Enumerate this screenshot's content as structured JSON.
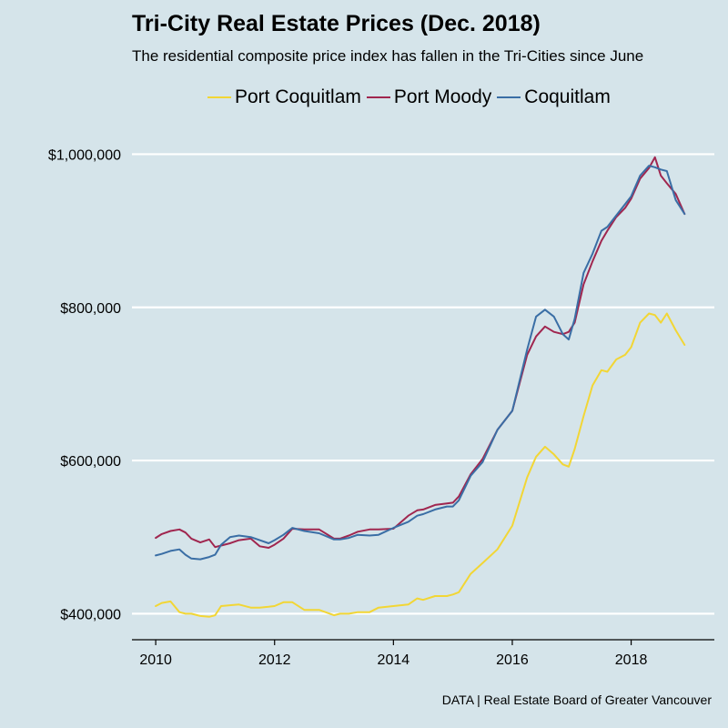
{
  "chart_data": {
    "type": "line",
    "title": "Tri-City Real Estate Prices (Dec. 2018)",
    "subtitle": "The residential composite price index has fallen in the Tri-Cities since June",
    "caption": "DATA | Real Estate Board of Greater Vancouver",
    "xlabel": "",
    "ylabel": "",
    "xlim": [
      2009.6,
      2019.4
    ],
    "ylim": [
      366000,
      1035000
    ],
    "x_ticks": [
      2010,
      2012,
      2014,
      2016,
      2018
    ],
    "x_tick_labels": [
      "2010",
      "2012",
      "2014",
      "2016",
      "2018"
    ],
    "y_ticks": [
      400000,
      600000,
      800000,
      1000000
    ],
    "y_tick_labels": [
      "$400,000",
      "$600,000",
      "$800,000",
      "$1,000,000"
    ],
    "grid": "horizontal",
    "legend_position": "top",
    "series": [
      {
        "name": "Port Coquitlam",
        "color": "#f2d635",
        "x": [
          2010.0,
          2010.1,
          2010.25,
          2010.4,
          2010.5,
          2010.6,
          2010.75,
          2010.9,
          2011.0,
          2011.1,
          2011.25,
          2011.4,
          2011.6,
          2011.75,
          2011.9,
          2012.0,
          2012.15,
          2012.3,
          2012.5,
          2012.75,
          2013.0,
          2013.1,
          2013.25,
          2013.4,
          2013.6,
          2013.75,
          2014.0,
          2014.25,
          2014.4,
          2014.5,
          2014.7,
          2014.9,
          2015.0,
          2015.1,
          2015.3,
          2015.5,
          2015.75,
          2016.0,
          2016.25,
          2016.4,
          2016.55,
          2016.7,
          2016.85,
          2016.95,
          2017.05,
          2017.2,
          2017.35,
          2017.5,
          2017.6,
          2017.75,
          2017.9,
          2018.0,
          2018.15,
          2018.3,
          2018.4,
          2018.5,
          2018.6,
          2018.75,
          2018.9
        ],
        "values": [
          410000,
          414000,
          416000,
          402000,
          400000,
          400000,
          397000,
          396000,
          398000,
          410000,
          411000,
          412000,
          408000,
          408000,
          409000,
          410000,
          415000,
          415000,
          405000,
          405000,
          398000,
          400000,
          400000,
          402000,
          402000,
          408000,
          410000,
          412000,
          420000,
          418000,
          423000,
          423000,
          425000,
          428000,
          452000,
          466000,
          484000,
          515000,
          578000,
          605000,
          618000,
          608000,
          595000,
          592000,
          615000,
          658000,
          698000,
          718000,
          716000,
          732000,
          738000,
          748000,
          780000,
          792000,
          790000,
          780000,
          792000,
          770000,
          751000
        ]
      },
      {
        "name": "Port Moody",
        "color": "#a0264f",
        "x": [
          2010.0,
          2010.1,
          2010.25,
          2010.4,
          2010.5,
          2010.6,
          2010.75,
          2010.9,
          2011.0,
          2011.1,
          2011.25,
          2011.4,
          2011.6,
          2011.75,
          2011.9,
          2012.0,
          2012.15,
          2012.3,
          2012.5,
          2012.75,
          2013.0,
          2013.1,
          2013.25,
          2013.4,
          2013.6,
          2013.75,
          2014.0,
          2014.25,
          2014.4,
          2014.5,
          2014.7,
          2014.9,
          2015.0,
          2015.1,
          2015.3,
          2015.5,
          2015.75,
          2016.0,
          2016.25,
          2016.4,
          2016.55,
          2016.7,
          2016.85,
          2016.95,
          2017.05,
          2017.2,
          2017.35,
          2017.5,
          2017.6,
          2017.75,
          2017.9,
          2018.0,
          2018.15,
          2018.3,
          2018.4,
          2018.5,
          2018.6,
          2018.75,
          2018.9
        ],
        "values": [
          499000,
          504000,
          508000,
          510000,
          506000,
          498000,
          493000,
          497000,
          487000,
          489000,
          492000,
          496000,
          498000,
          488000,
          486000,
          490000,
          498000,
          511000,
          510000,
          510000,
          498000,
          498000,
          502000,
          507000,
          510000,
          510000,
          511000,
          528000,
          535000,
          536000,
          542000,
          544000,
          545000,
          553000,
          582000,
          602000,
          640000,
          665000,
          738000,
          762000,
          775000,
          768000,
          765000,
          768000,
          780000,
          830000,
          860000,
          887000,
          900000,
          918000,
          930000,
          942000,
          968000,
          982000,
          996000,
          972000,
          962000,
          948000,
          922000
        ]
      },
      {
        "name": "Coquitlam",
        "color": "#3a6ea5",
        "x": [
          2010.0,
          2010.1,
          2010.25,
          2010.4,
          2010.5,
          2010.6,
          2010.75,
          2010.9,
          2011.0,
          2011.1,
          2011.25,
          2011.4,
          2011.6,
          2011.75,
          2011.9,
          2012.0,
          2012.15,
          2012.3,
          2012.5,
          2012.75,
          2013.0,
          2013.1,
          2013.25,
          2013.4,
          2013.6,
          2013.75,
          2014.0,
          2014.25,
          2014.4,
          2014.5,
          2014.7,
          2014.9,
          2015.0,
          2015.1,
          2015.3,
          2015.5,
          2015.75,
          2016.0,
          2016.25,
          2016.4,
          2016.55,
          2016.7,
          2016.85,
          2016.95,
          2017.05,
          2017.2,
          2017.35,
          2017.5,
          2017.6,
          2017.75,
          2017.9,
          2018.0,
          2018.15,
          2018.3,
          2018.4,
          2018.5,
          2018.6,
          2018.75,
          2018.9
        ],
        "values": [
          476000,
          478000,
          482000,
          484000,
          477000,
          472000,
          471000,
          474000,
          477000,
          490000,
          500000,
          502000,
          500000,
          496000,
          492000,
          496000,
          503000,
          512000,
          508000,
          505000,
          497000,
          497000,
          499000,
          503000,
          502000,
          503000,
          512000,
          520000,
          528000,
          530000,
          536000,
          540000,
          540000,
          548000,
          580000,
          598000,
          640000,
          665000,
          745000,
          788000,
          797000,
          788000,
          765000,
          758000,
          785000,
          845000,
          870000,
          900000,
          905000,
          920000,
          935000,
          945000,
          972000,
          985000,
          983000,
          980000,
          978000,
          940000,
          922000
        ]
      }
    ]
  }
}
